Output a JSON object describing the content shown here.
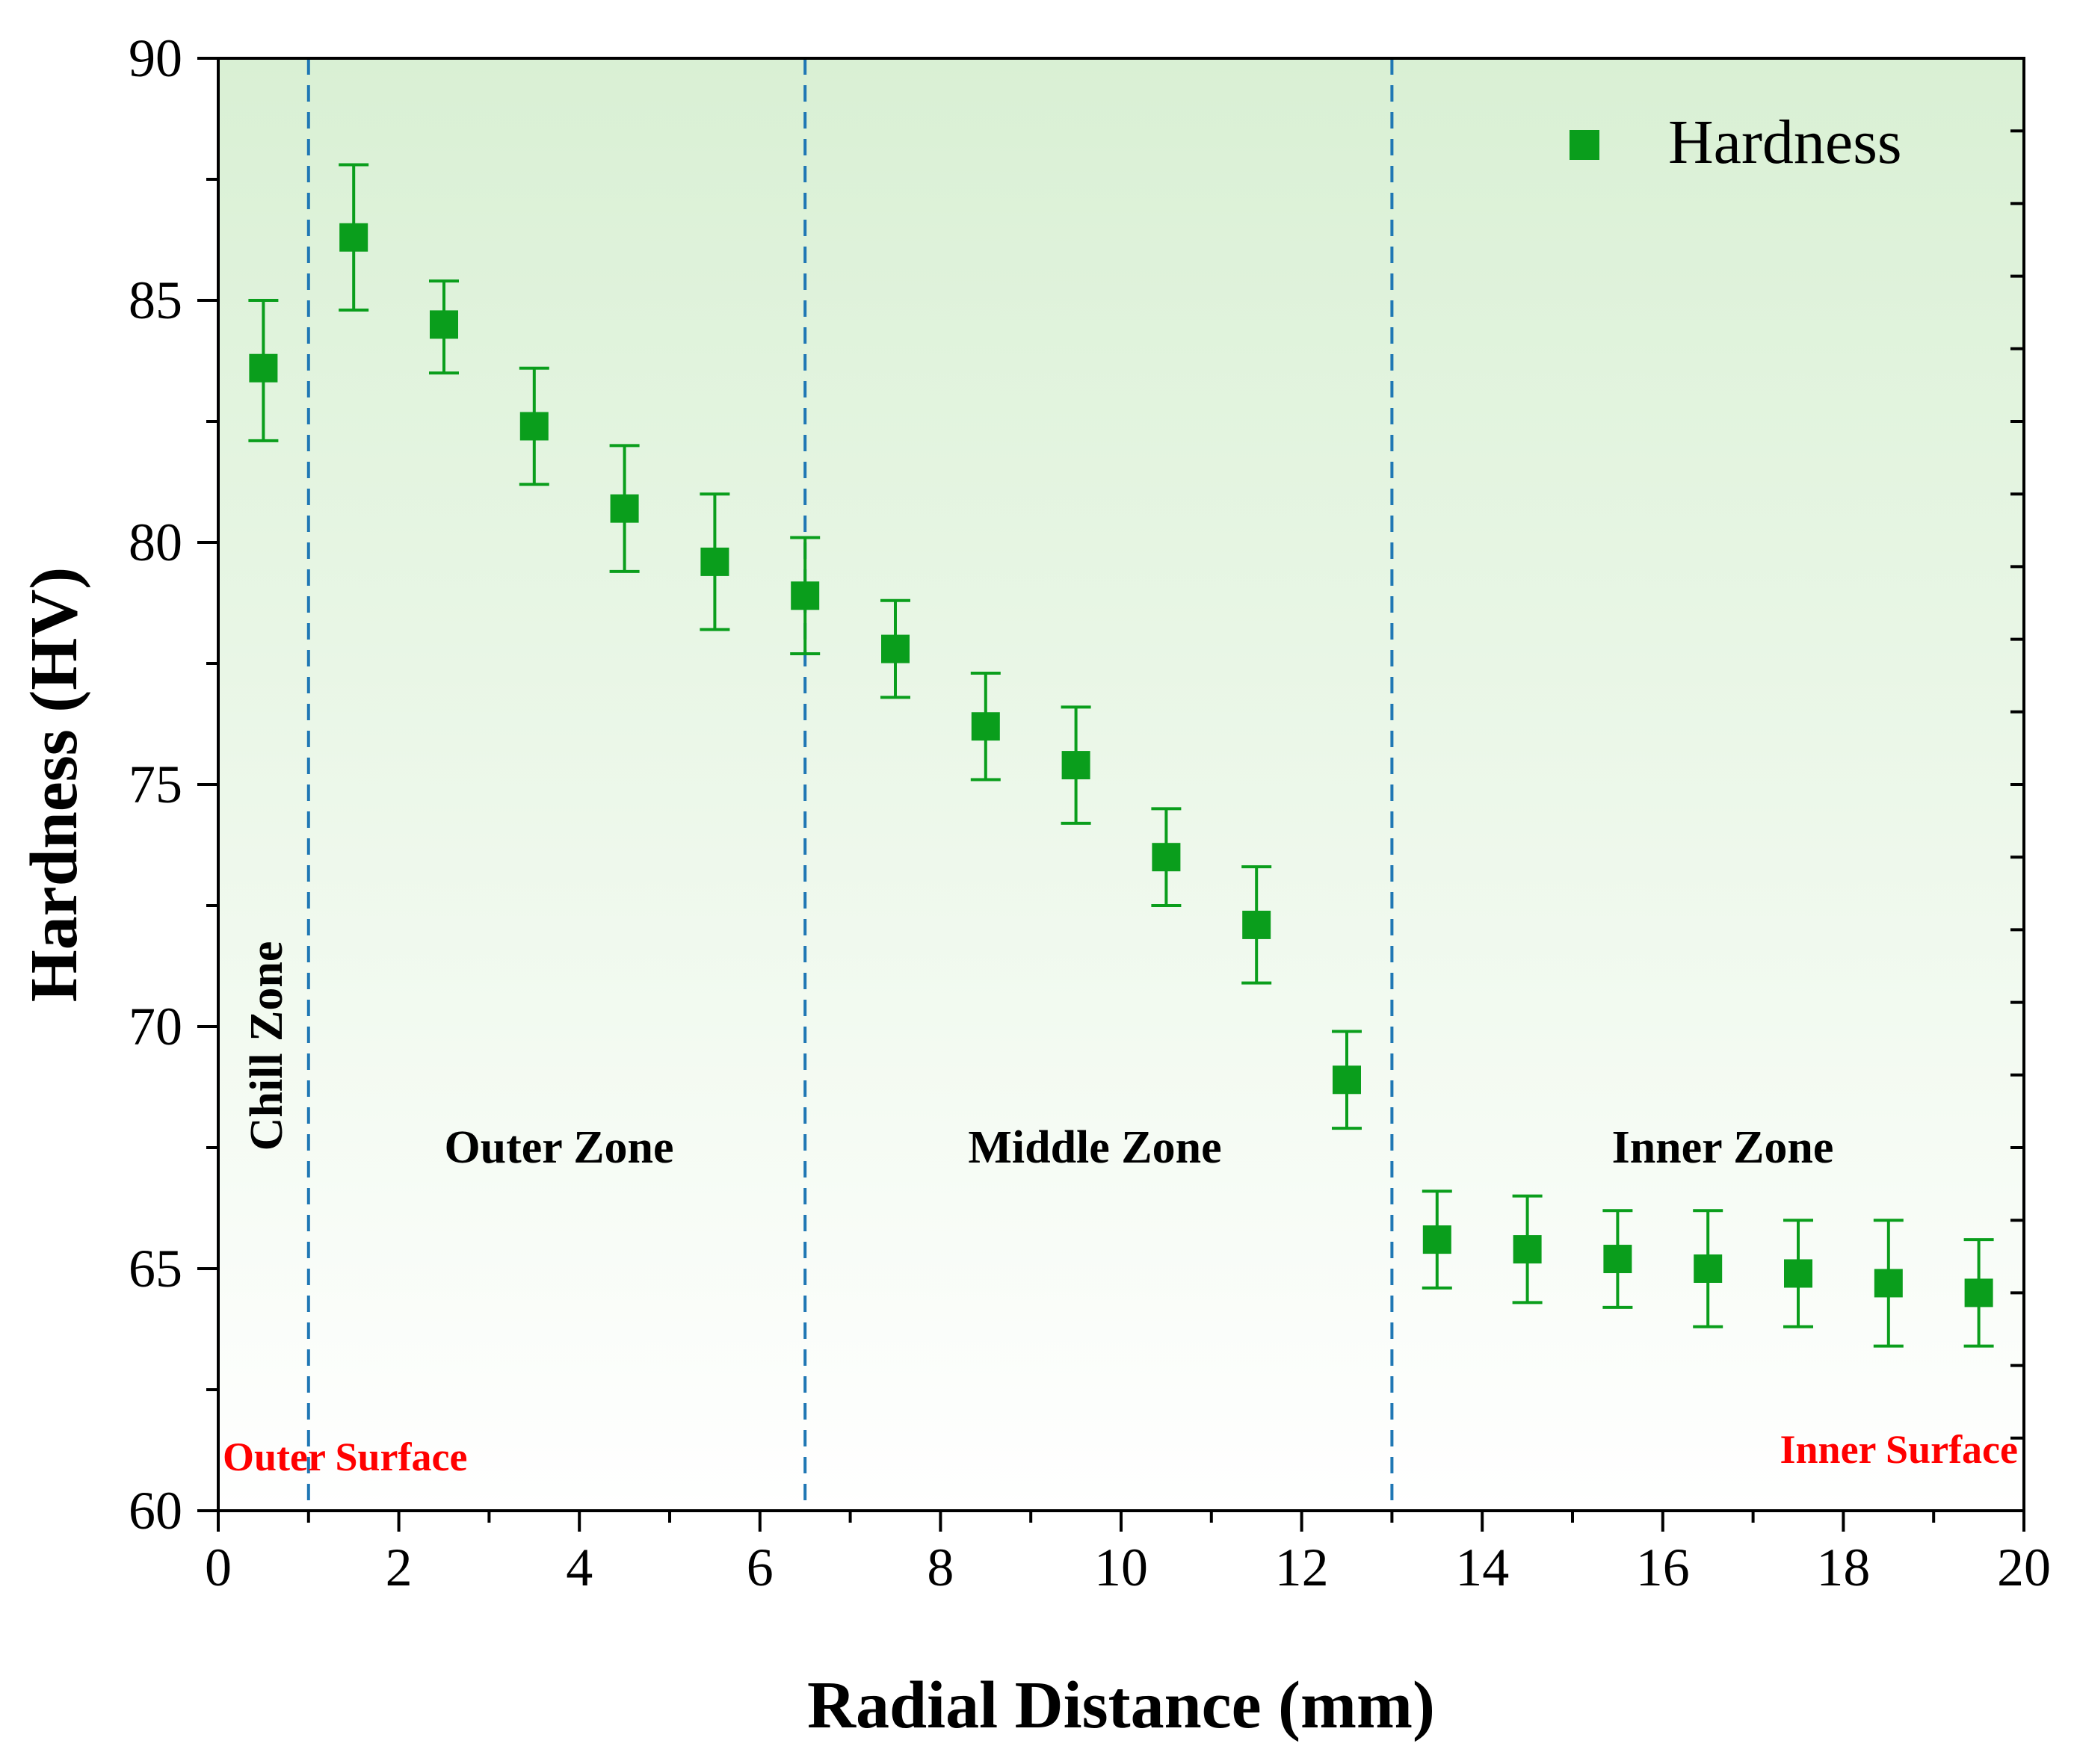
{
  "chart_data": {
    "type": "scatter",
    "title": "",
    "xlabel": "Radial Distance (mm)",
    "ylabel": "Hardness (HV)",
    "xlim": [
      0,
      20
    ],
    "ylim": [
      60,
      90
    ],
    "xticks": [
      0,
      2,
      4,
      6,
      8,
      10,
      12,
      14,
      16,
      18,
      20
    ],
    "yticks": [
      60,
      65,
      70,
      75,
      80,
      85,
      90
    ],
    "grid": false,
    "legend": {
      "position": "top-right",
      "entries": [
        "Hardness"
      ]
    },
    "series": [
      {
        "name": "Hardness",
        "color": "#0a9e1c",
        "marker": "square",
        "x": [
          0.5,
          1.5,
          2.5,
          3.5,
          4.5,
          5.5,
          6.5,
          7.5,
          8.5,
          9.5,
          10.5,
          11.5,
          12.5,
          13.5,
          14.5,
          15.5,
          16.5,
          17.5,
          18.5,
          19.5
        ],
        "y": [
          83.6,
          86.3,
          84.5,
          82.4,
          80.7,
          79.6,
          78.9,
          77.8,
          76.2,
          75.4,
          73.5,
          72.1,
          68.9,
          65.6,
          65.4,
          65.2,
          65.0,
          64.9,
          64.7,
          64.5
        ],
        "err_low": [
          82.1,
          84.8,
          83.5,
          81.2,
          79.4,
          78.2,
          77.7,
          76.8,
          75.1,
          74.2,
          72.5,
          70.9,
          67.9,
          64.6,
          64.3,
          64.2,
          63.8,
          63.8,
          63.4,
          63.4
        ],
        "err_high": [
          85.0,
          87.8,
          85.4,
          83.6,
          82.0,
          81.0,
          80.1,
          78.8,
          77.3,
          76.6,
          74.5,
          73.3,
          69.9,
          66.6,
          66.5,
          66.2,
          66.2,
          66.0,
          66.0,
          65.6
        ]
      }
    ],
    "zone_boundaries": [
      1.0,
      6.5,
      13.0
    ],
    "zone_boundary_color": "#1f77b4",
    "zones": [
      "Chill Zone",
      "Outer Zone",
      "Middle Zone",
      "Inner Zone"
    ],
    "surfaces": {
      "outer": "Outer Surface",
      "inner": "Inner Surface"
    },
    "surface_color": "#ff0000",
    "background_gradient": {
      "top": "#d9f0d4",
      "bottom": "#ffffff"
    }
  }
}
